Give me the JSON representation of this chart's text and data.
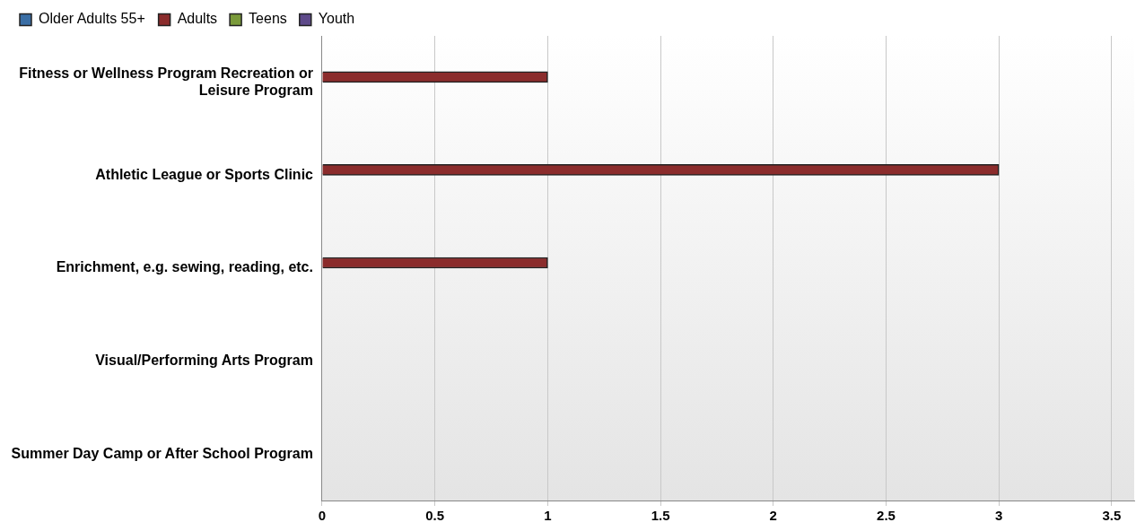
{
  "chart_data": {
    "type": "bar",
    "orientation": "horizontal",
    "categories": [
      "Fitness or Wellness Program Recreation or Leisure Program",
      "Athletic League or Sports Clinic",
      "Enrichment, e.g. sewing, reading, etc.",
      "Visual/Performing Arts Program",
      "Summer Day Camp or After School Program"
    ],
    "series": [
      {
        "name": "Older Adults 55+",
        "color": "#3a6ea5",
        "values": [
          0,
          0,
          0,
          0,
          0
        ]
      },
      {
        "name": "Adults",
        "color": "#8b2c2c",
        "values": [
          1,
          3,
          1,
          0,
          0
        ]
      },
      {
        "name": "Teens",
        "color": "#7a9a3a",
        "values": [
          0,
          0,
          0,
          0,
          0
        ]
      },
      {
        "name": "Youth",
        "color": "#5e4a8a",
        "values": [
          0,
          0,
          0,
          0,
          0
        ]
      }
    ],
    "xlim": [
      0,
      3.6
    ],
    "xticks": [
      0,
      0.5,
      1,
      1.5,
      2,
      2.5,
      3,
      3.5
    ],
    "grid": "x",
    "legend": "top left"
  }
}
